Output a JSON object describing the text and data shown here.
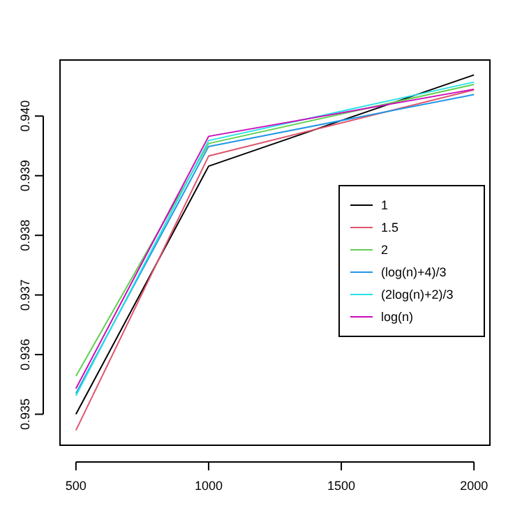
{
  "chart_data": {
    "type": "line",
    "x": [
      500,
      1000,
      2000
    ],
    "xlim": [
      440,
      2060
    ],
    "xticks": [
      500,
      1000,
      1500,
      2000
    ],
    "ylim": [
      0.93448,
      0.94094
    ],
    "yticks": [
      0.935,
      0.936,
      0.937,
      0.938,
      0.939,
      {
        "value": 0.94,
        "label": "0.940"
      }
    ],
    "grid": false,
    "legend": "right",
    "marker": "none",
    "line_style": "solid",
    "series": [
      {
        "name": "1",
        "color": "#000000",
        "values": [
          0.935,
          0.93916,
          0.94069
        ]
      },
      {
        "name": "1.5",
        "color": "#df536b",
        "values": [
          0.93473,
          0.93933,
          0.94044
        ]
      },
      {
        "name": "2",
        "color": "#61d04f",
        "values": [
          0.93564,
          0.93954,
          0.94053
        ]
      },
      {
        "name": "(log(n)+4)/3",
        "color": "#2297e6",
        "values": [
          0.93535,
          0.93949,
          0.94036
        ]
      },
      {
        "name": "(2log(n)+2)/3",
        "color": "#28e2e5",
        "values": [
          0.93531,
          0.93959,
          0.94057
        ]
      },
      {
        "name": "log(n)",
        "color": "#cd0bbc",
        "values": [
          0.93543,
          0.93966,
          0.94045
        ]
      }
    ]
  }
}
